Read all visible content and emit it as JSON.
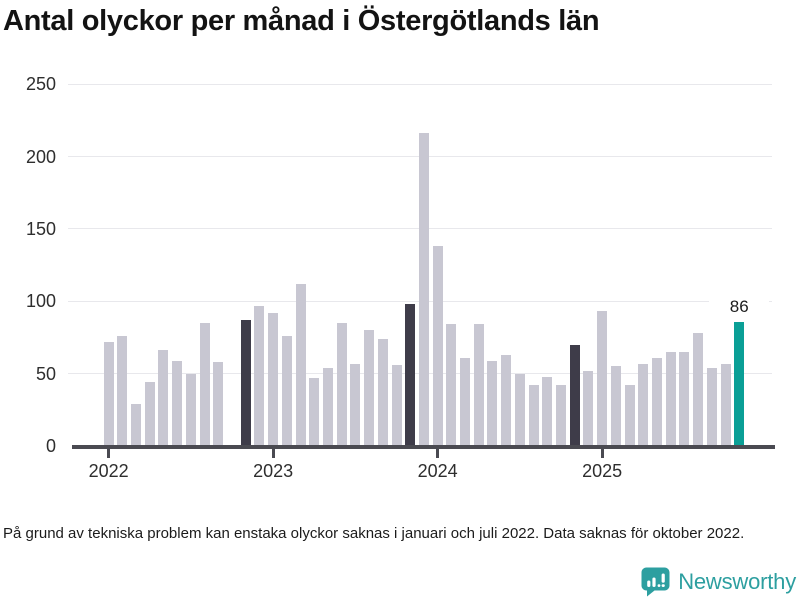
{
  "title": "Antal olyckor per månad i Östergötlands län",
  "footnote": "På grund av tekniska problem kan enstaka olyckor saknas i januari och juli 2022. Data saknas för oktober 2022.",
  "branding": {
    "name": "Newsworthy",
    "icon": "bar-chart-speech-bubble-icon"
  },
  "colors": {
    "bar_default": "#c8c7d2",
    "bar_dark": "#3e3c49",
    "bar_highlight": "#0a9f96",
    "gridline": "#e8e8ec",
    "axis": "#4a4a51",
    "brand_teal": "#2d9fa0",
    "title_text": "#131313",
    "tick_text": "#2e2e2e"
  },
  "chart_data": {
    "type": "bar",
    "title": "Antal olyckor per månad i Östergötlands län",
    "xlabel": "",
    "ylabel": "",
    "ylim": [
      0,
      250
    ],
    "y_ticks": [
      0,
      50,
      100,
      150,
      200,
      250
    ],
    "x_tick_labels": [
      "2022",
      "2023",
      "2024",
      "2025"
    ],
    "grid": "horizontal",
    "legend": "none",
    "annotation": {
      "month": "2025-11",
      "label": "86"
    },
    "missing_months": [
      "2022-10"
    ],
    "points": [
      {
        "month": "2022-01",
        "value": 72
      },
      {
        "month": "2022-02",
        "value": 76
      },
      {
        "month": "2022-03",
        "value": 29
      },
      {
        "month": "2022-04",
        "value": 44
      },
      {
        "month": "2022-05",
        "value": 66
      },
      {
        "month": "2022-06",
        "value": 59
      },
      {
        "month": "2022-07",
        "value": 50
      },
      {
        "month": "2022-08",
        "value": 85
      },
      {
        "month": "2022-09",
        "value": 58
      },
      {
        "month": "2022-10",
        "value": null
      },
      {
        "month": "2022-11",
        "value": 87,
        "highlight": "dark"
      },
      {
        "month": "2022-12",
        "value": 97
      },
      {
        "month": "2023-01",
        "value": 92
      },
      {
        "month": "2023-02",
        "value": 76
      },
      {
        "month": "2023-03",
        "value": 112
      },
      {
        "month": "2023-04",
        "value": 47
      },
      {
        "month": "2023-05",
        "value": 54
      },
      {
        "month": "2023-06",
        "value": 85
      },
      {
        "month": "2023-07",
        "value": 57
      },
      {
        "month": "2023-08",
        "value": 80
      },
      {
        "month": "2023-09",
        "value": 74
      },
      {
        "month": "2023-10",
        "value": 56
      },
      {
        "month": "2023-11",
        "value": 98,
        "highlight": "dark"
      },
      {
        "month": "2023-12",
        "value": 216
      },
      {
        "month": "2024-01",
        "value": 138
      },
      {
        "month": "2024-02",
        "value": 84
      },
      {
        "month": "2024-03",
        "value": 61
      },
      {
        "month": "2024-04",
        "value": 84
      },
      {
        "month": "2024-05",
        "value": 59
      },
      {
        "month": "2024-06",
        "value": 63
      },
      {
        "month": "2024-07",
        "value": 50
      },
      {
        "month": "2024-08",
        "value": 42
      },
      {
        "month": "2024-09",
        "value": 48
      },
      {
        "month": "2024-10",
        "value": 42
      },
      {
        "month": "2024-11",
        "value": 70,
        "highlight": "dark"
      },
      {
        "month": "2024-12",
        "value": 52
      },
      {
        "month": "2025-01",
        "value": 93
      },
      {
        "month": "2025-02",
        "value": 55
      },
      {
        "month": "2025-03",
        "value": 42
      },
      {
        "month": "2025-04",
        "value": 57
      },
      {
        "month": "2025-05",
        "value": 61
      },
      {
        "month": "2025-06",
        "value": 65
      },
      {
        "month": "2025-07",
        "value": 65
      },
      {
        "month": "2025-08",
        "value": 78
      },
      {
        "month": "2025-09",
        "value": 54
      },
      {
        "month": "2025-10",
        "value": 57
      },
      {
        "month": "2025-11",
        "value": 86,
        "highlight": "teal"
      }
    ]
  }
}
